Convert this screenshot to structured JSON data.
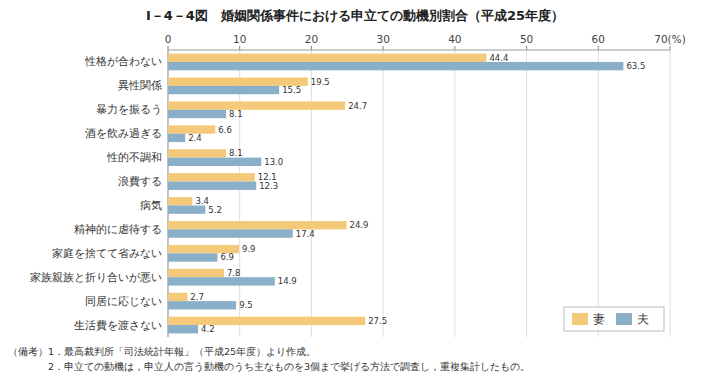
{
  "chart_data": {
    "type": "bar",
    "orientation": "horizontal",
    "title": "I－4－4図　婚姻関係事件における申立ての動機別割合（平成25年度）",
    "categories": [
      "性格が合わない",
      "異性関係",
      "暴力を振るう",
      "酒を飲み過ぎる",
      "性的不調和",
      "浪費する",
      "病気",
      "精神的に虐待する",
      "家庭を捨てて省みない",
      "家族親族と折り合いが悪い",
      "同居に応じない",
      "生活費を渡さない"
    ],
    "series": [
      {
        "name": "妻",
        "color": "#F5C97A",
        "values": [
          44.4,
          19.5,
          24.7,
          6.6,
          8.1,
          12.1,
          3.4,
          24.9,
          9.9,
          7.8,
          2.7,
          27.5
        ],
        "value_labels": [
          "44.4",
          "19.5",
          "24.7",
          "6.6",
          "8.1",
          "12.1",
          "3.4",
          "24.9",
          "9.9",
          "7.8",
          "2.7",
          "27.5"
        ]
      },
      {
        "name": "夫",
        "color": "#8AAFC8",
        "values": [
          63.5,
          15.5,
          8.1,
          2.4,
          13.0,
          12.3,
          5.2,
          17.4,
          6.9,
          14.9,
          9.5,
          4.2
        ],
        "value_labels": [
          "63.5",
          "15.5",
          "8.1",
          "2.4",
          "13.0",
          "12.3",
          "5.2",
          "17.4",
          "6.9",
          "14.9",
          "9.5",
          "4.2"
        ]
      }
    ],
    "xlim": [
      0,
      70
    ],
    "xticks": [
      0,
      10,
      20,
      30,
      40,
      50,
      60,
      {
        "value": 70,
        "label": "70(%)"
      }
    ],
    "grid": true,
    "legend": "lower right",
    "data_labels": true,
    "annotations": [
      "（備考）1．最高裁判所「司法統計年報」（平成25年度）より作成。",
      "　　　　2．申立ての動機は，申立人の言う動機のうち主なものを3個まで挙げる方法で調査し，重複集計したもの。"
    ]
  }
}
